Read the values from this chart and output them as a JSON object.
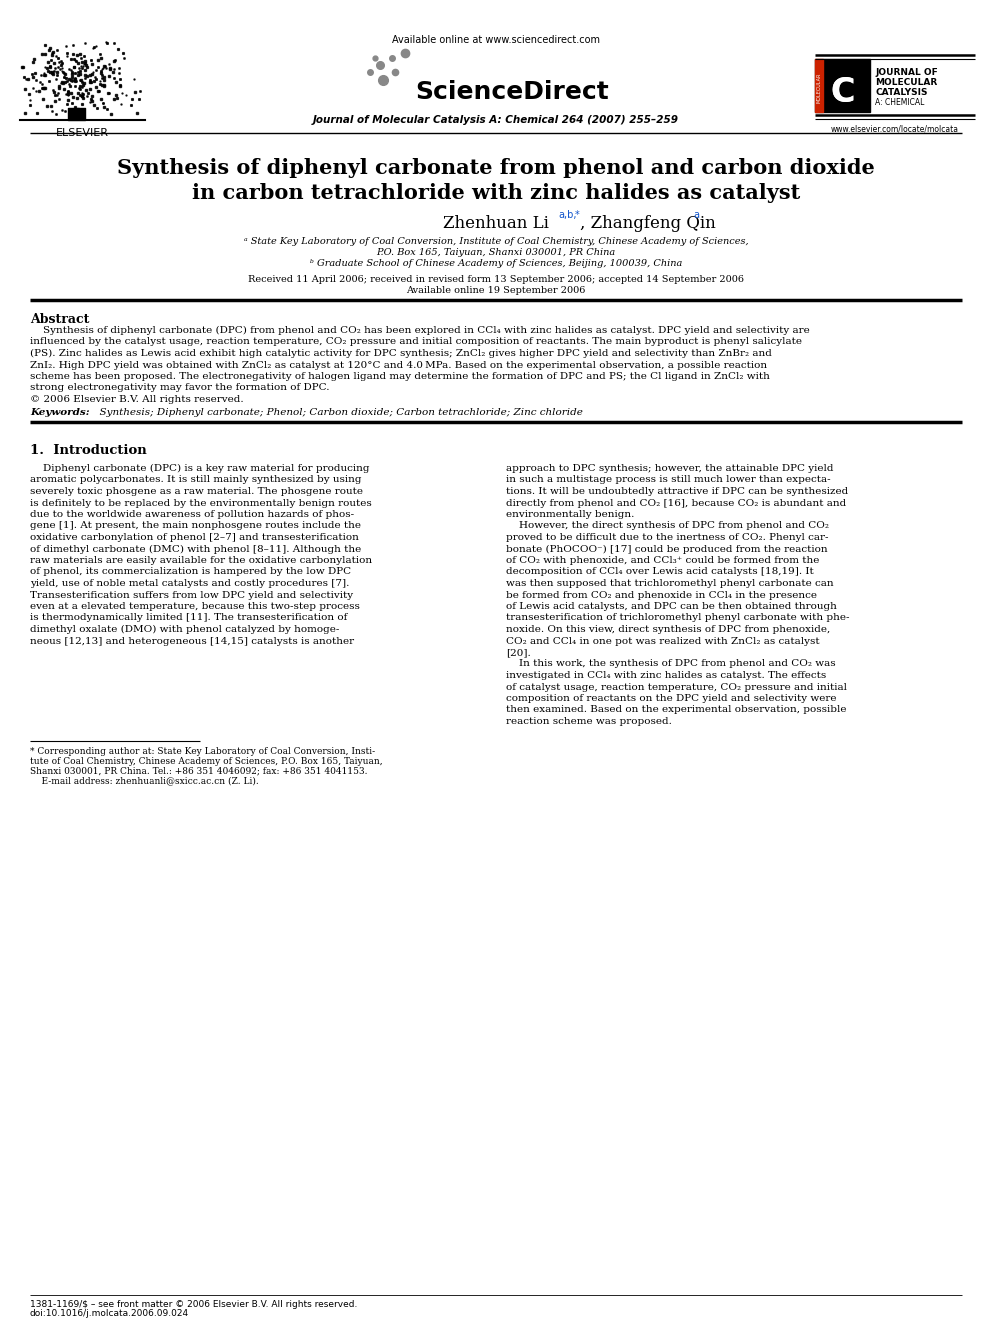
{
  "bg_color": "#ffffff",
  "title_line1": "Synthesis of diphenyl carbonate from phenol and carbon dioxide",
  "title_line2": "in carbon tetrachloride with zinc halides as catalyst",
  "author_main": "Zhenhuan Li",
  "author_sup1": "a,b,*",
  "author_sep": ", Zhangfeng Qin",
  "author_sup2": "a",
  "affil_a": "ᵃ State Key Laboratory of Coal Conversion, Institute of Coal Chemistry, Chinese Academy of Sciences,",
  "affil_a2": "P.O. Box 165, Taiyuan, Shanxi 030001, PR China",
  "affil_b": "ᵇ Graduate School of Chinese Academy of Sciences, Beijing, 100039, China",
  "received": "Received 11 April 2006; received in revised form 13 September 2006; accepted 14 September 2006",
  "available": "Available online 19 September 2006",
  "journal_header": "Journal of Molecular Catalysis A: Chemical 264 (2007) 255–259",
  "available_online": "Available online at www.sciencedirect.com",
  "elsevier_url": "www.elsevier.com/locate/molcata",
  "abstract_title": "Abstract",
  "copyright": "© 2006 Elsevier B.V. All rights reserved.",
  "keywords_label": "Keywords:",
  "keywords_text": "  Synthesis; Diphenyl carbonate; Phenol; Carbon dioxide; Carbon tetrachloride; Zinc chloride",
  "section1_title": "1.  Introduction",
  "footer_issn": "1381-1169/$ – see front matter © 2006 Elsevier B.V. All rights reserved.",
  "footer_doi": "doi:10.1016/j.molcata.2006.09.024"
}
